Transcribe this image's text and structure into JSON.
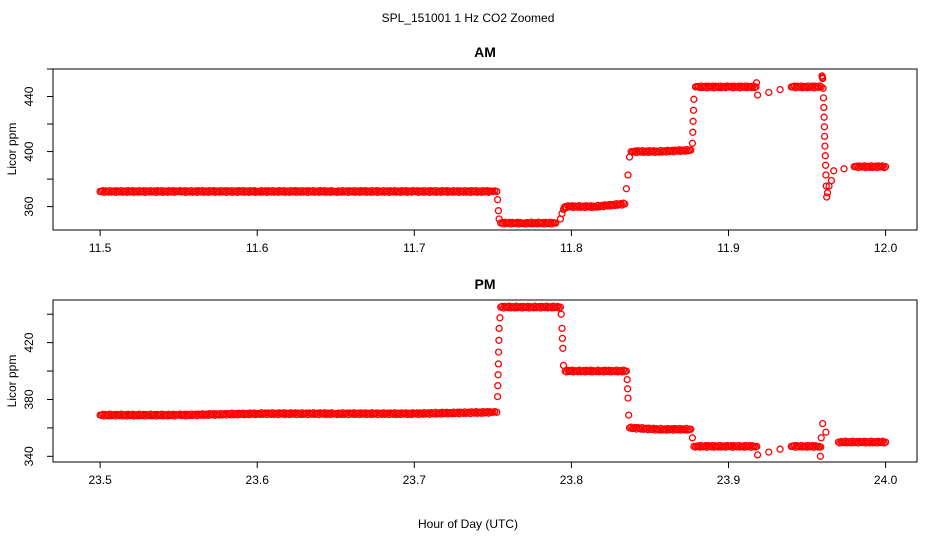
{
  "figure": {
    "suptitle": "SPL_151001  1 Hz CO2 Zoomed",
    "shared_xlabel": "Hour of Day (UTC)"
  },
  "chart_data": [
    {
      "type": "scatter",
      "title": "AM",
      "xlabel": "",
      "ylabel": "Licor ppm",
      "xlim": [
        11.47,
        12.02
      ],
      "ylim": [
        343,
        460
      ],
      "xticks": [
        11.5,
        11.6,
        11.7,
        11.8,
        11.9,
        12.0
      ],
      "xtick_labels": [
        "11.5",
        "11.6",
        "11.7",
        "11.8",
        "11.9",
        "12.0"
      ],
      "yticks": [
        360,
        400,
        440
      ],
      "ytick_labels": [
        "360",
        "400",
        "440"
      ],
      "marker_color": "#ff0000",
      "grid": false,
      "series": [
        {
          "x": [
            11.5,
            11.55,
            11.6,
            11.65,
            11.7,
            11.75,
            11.7525,
            11.753,
            11.7535,
            11.754,
            11.755,
            11.77,
            11.79,
            11.793,
            11.794,
            11.795,
            11.796,
            11.815,
            11.834,
            11.835,
            11.836,
            11.837,
            11.838,
            11.855,
            11.876,
            11.877,
            11.8775,
            11.878,
            11.879,
            11.9,
            11.9175,
            11.9178,
            11.9185,
            11.94,
            11.959,
            11.9595,
            11.96,
            11.9605,
            11.9612,
            11.962,
            11.9625,
            11.963,
            11.964,
            11.9655,
            11.967,
            11.98,
            12.0
          ],
          "y": [
            371,
            371,
            371,
            371,
            371,
            371,
            371,
            365,
            357,
            351,
            348,
            348,
            348,
            351,
            355,
            358,
            360,
            360,
            362,
            373,
            383,
            396,
            400,
            400,
            401,
            406,
            422,
            438,
            447,
            447,
            447,
            450,
            441,
            447,
            447,
            455,
            453,
            439,
            411,
            383,
            367,
            370,
            375,
            379,
            386,
            389,
            389
          ]
        }
      ]
    },
    {
      "type": "scatter",
      "title": "PM",
      "xlabel": "Hour of Day (UTC)",
      "ylabel": "Licor ppm",
      "xlim": [
        23.47,
        24.02
      ],
      "ylim": [
        336,
        450
      ],
      "xticks": [
        23.5,
        23.6,
        23.7,
        23.8,
        23.9,
        24.0
      ],
      "xtick_labels": [
        "23.5",
        "23.6",
        "23.7",
        "23.8",
        "23.9",
        "24.0"
      ],
      "yticks": [
        340,
        380,
        420
      ],
      "ytick_labels": [
        "340",
        "380",
        "420"
      ],
      "marker_color": "#ff0000",
      "grid": false,
      "series": [
        {
          "x": [
            23.5,
            23.55,
            23.6,
            23.65,
            23.7,
            23.75,
            23.7525,
            23.753,
            23.7535,
            23.754,
            23.755,
            23.775,
            23.793,
            23.7935,
            23.794,
            23.7945,
            23.795,
            23.796,
            23.815,
            23.835,
            23.8355,
            23.836,
            23.8365,
            23.837,
            23.855,
            23.876,
            23.877,
            23.878,
            23.9,
            23.918,
            23.9185,
            23.94,
            23.958,
            23.9585,
            23.959,
            23.96,
            23.962,
            23.97,
            24.0
          ],
          "y": [
            369,
            369,
            370,
            370,
            370,
            371,
            371,
            382,
            405,
            430,
            445,
            445,
            445,
            440,
            430,
            416,
            404,
            400,
            400,
            400,
            394,
            381,
            369,
            360,
            359,
            359,
            353,
            347,
            347,
            347,
            341,
            347,
            347,
            340,
            353,
            363,
            357,
            350,
            350
          ]
        }
      ]
    }
  ]
}
